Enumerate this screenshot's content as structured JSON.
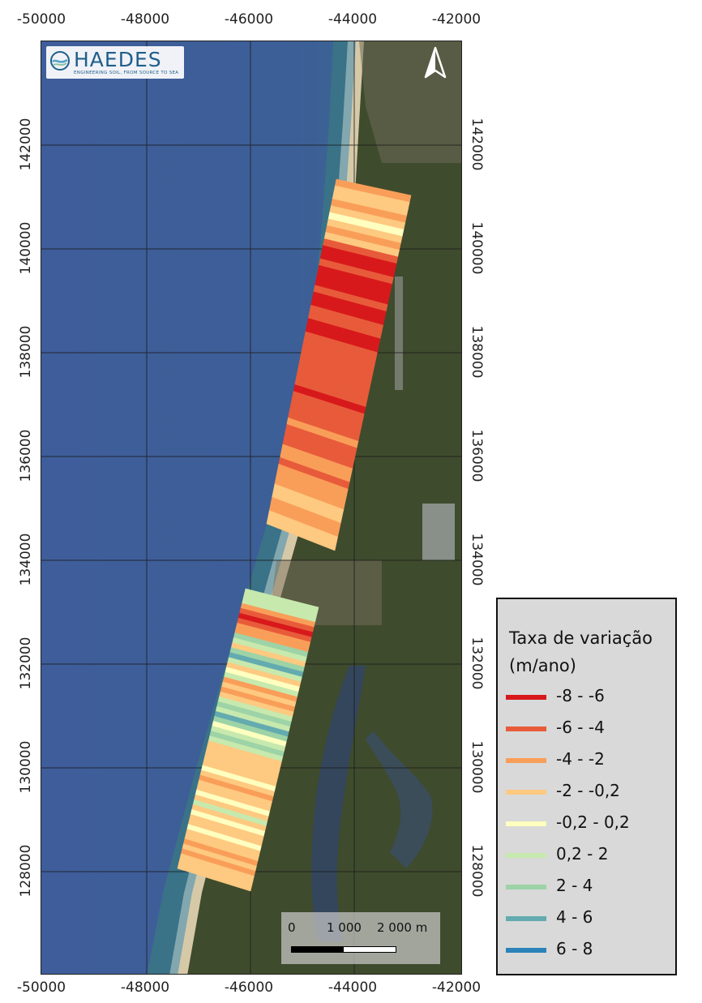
{
  "logo": {
    "wordmark": "HAEDES",
    "tagline": "ENGINEERING SOIL, FROM SOURCE TO SEA"
  },
  "north_arrow": {
    "icon": "north-arrow-icon"
  },
  "axes": {
    "x_ticks": [
      "-50000",
      "-48000",
      "-46000",
      "-44000",
      "-42000"
    ],
    "y_ticks": [
      "142000",
      "140000",
      "138000",
      "136000",
      "134000",
      "132000",
      "130000",
      "128000"
    ]
  },
  "scale_bar": {
    "labels": [
      "0",
      "1 000",
      "2 000 m"
    ]
  },
  "legend": {
    "title_line1": "Taxa de variação",
    "title_line2": "(m/ano)",
    "items": [
      {
        "label": "-8 - -6",
        "color": "#d7191c"
      },
      {
        "label": "-6 - -4",
        "color": "#e85b3a"
      },
      {
        "label": "-4 - -2",
        "color": "#f99e59"
      },
      {
        "label": "-2 - -0,2",
        "color": "#fec980"
      },
      {
        "label": "-0,2 - 0,2",
        "color": "#ffffbf"
      },
      {
        "label": "0,2 - 2",
        "color": "#c7e9ad"
      },
      {
        "label": "2 - 4",
        "color": "#9dd3a7"
      },
      {
        "label": "4 - 6",
        "color": "#64abb0"
      },
      {
        "label": "6 - 8",
        "color": "#2b83ba"
      }
    ]
  },
  "map_colors": {
    "sea_deep": "#3f5f99",
    "sea_shallow": "#356f8a",
    "surf": "#9fb8bf",
    "beach": "#d8ccb0",
    "land": "#3d4a2c",
    "lagoon": "#34465c"
  },
  "transect_sequences": {
    "north": [
      2,
      3,
      3,
      2,
      3,
      4,
      3,
      2,
      3,
      1,
      0,
      0,
      1,
      0,
      0,
      0,
      1,
      0,
      0,
      1,
      1,
      0,
      0,
      1,
      1,
      1,
      1,
      1,
      1,
      1,
      1,
      0,
      1,
      1,
      1,
      1,
      2,
      1,
      1,
      1,
      2,
      2,
      1,
      2,
      2,
      2,
      3,
      3,
      2,
      2,
      3,
      3
    ],
    "south": [
      5,
      5,
      5,
      2,
      1,
      0,
      1,
      2,
      2,
      6,
      5,
      3,
      6,
      7,
      5,
      3,
      4,
      5,
      2,
      3,
      2,
      3,
      5,
      6,
      5,
      7,
      6,
      4,
      5,
      6,
      5,
      3,
      3,
      3,
      3,
      3,
      4,
      3,
      2,
      3,
      3,
      4,
      3,
      5,
      3,
      4,
      3,
      3,
      4,
      3,
      3,
      2,
      3,
      2,
      3,
      3,
      3
    ]
  }
}
